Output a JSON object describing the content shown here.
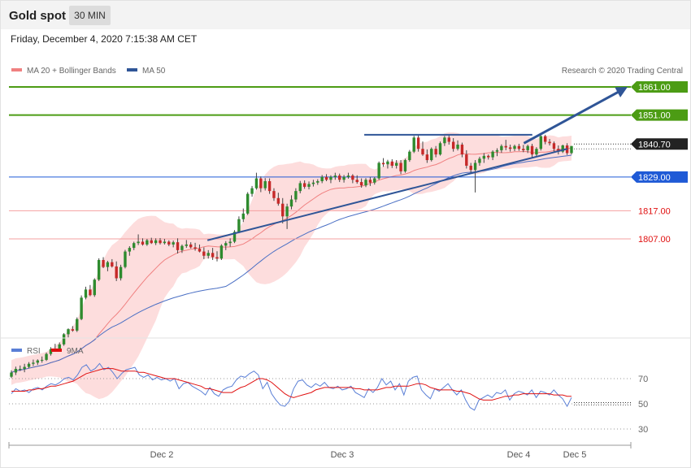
{
  "header": {
    "instrument": "Gold spot",
    "timeframe": "30 MIN",
    "datetime": "Friday, December 4, 2020 7:15:38 AM CET"
  },
  "chart_data": [
    {
      "type": "candlestick",
      "legend": [
        {
          "label": "MA 20 + Bollinger Bands",
          "color": "#f08080"
        },
        {
          "label": "MA 50",
          "color": "#2f5597"
        }
      ],
      "credit": "Research © 2020 Trading Central",
      "x_ticks": [
        "Dec 2",
        "Dec 3",
        "Dec 4",
        "Dec 5"
      ],
      "levels": [
        {
          "label": "1861.00",
          "value": 1861.0,
          "kind": "target",
          "color": "#4c9c14"
        },
        {
          "label": "1851.00",
          "value": 1851.0,
          "kind": "target",
          "color": "#4c9c14"
        },
        {
          "label": "1840.70",
          "value": 1840.7,
          "kind": "last",
          "color": "#222222"
        },
        {
          "label": "1829.00",
          "value": 1829.0,
          "kind": "pivot",
          "color": "#1f5ad6"
        },
        {
          "label": "1817.00",
          "value": 1817.0,
          "kind": "support",
          "color": "#e06060"
        },
        {
          "label": "1807.00",
          "value": 1807.0,
          "kind": "support",
          "color": "#e06060"
        }
      ],
      "ylim": [
        1747,
        1870
      ],
      "annotations": {
        "trendline": [
          {
            "i": 0.35,
            "v": 1806.5
          },
          {
            "i": 1.0,
            "v": 1839.0
          }
        ],
        "resistance": {
          "from": 0.63,
          "to": 0.93,
          "value": 1844.0
        },
        "arrow": {
          "from_i": 0.915,
          "from_v": 1841.0,
          "to_i": 1.0,
          "to_v": 1861.0
        }
      },
      "candles": [
        [
          1758.0,
          1760.3,
          1757.5,
          1759.5
        ],
        [
          1759.5,
          1761.6,
          1758.6,
          1760.8
        ],
        [
          1760.8,
          1762.0,
          1760.0,
          1760.8
        ],
        [
          1760.8,
          1762.6,
          1759.6,
          1761.5
        ],
        [
          1761.5,
          1763.2,
          1761.0,
          1762.6
        ],
        [
          1762.6,
          1764.1,
          1761.8,
          1763.0
        ],
        [
          1763.0,
          1764.2,
          1762.2,
          1763.8
        ],
        [
          1763.8,
          1765.2,
          1763.0,
          1764.0
        ],
        [
          1764.0,
          1766.6,
          1763.6,
          1766.1
        ],
        [
          1766.1,
          1768.5,
          1765.5,
          1767.8
        ],
        [
          1767.8,
          1769.7,
          1767.0,
          1768.0
        ],
        [
          1768.0,
          1770.2,
          1767.6,
          1769.5
        ],
        [
          1769.5,
          1773.5,
          1769.0,
          1773.1
        ],
        [
          1773.1,
          1775.2,
          1772.0,
          1774.9
        ],
        [
          1774.9,
          1776.0,
          1774.0,
          1774.4
        ],
        [
          1774.4,
          1779.1,
          1773.9,
          1778.5
        ],
        [
          1778.5,
          1786.9,
          1778.1,
          1786.1
        ],
        [
          1786.1,
          1790.0,
          1785.5,
          1789.0
        ],
        [
          1789.0,
          1790.6,
          1786.6,
          1787.0
        ],
        [
          1787.0,
          1793.0,
          1786.4,
          1792.5
        ],
        [
          1792.5,
          1800.1,
          1792.0,
          1799.5
        ],
        [
          1799.5,
          1800.5,
          1796.6,
          1797.0
        ],
        [
          1797.0,
          1799.2,
          1795.5,
          1798.7
        ],
        [
          1798.7,
          1799.8,
          1796.8,
          1797.2
        ],
        [
          1797.2,
          1799.0,
          1792.0,
          1793.0
        ],
        [
          1793.0,
          1797.8,
          1792.2,
          1797.0
        ],
        [
          1797.0,
          1803.1,
          1796.5,
          1802.5
        ],
        [
          1802.5,
          1804.4,
          1801.0,
          1803.8
        ],
        [
          1803.8,
          1806.0,
          1803.0,
          1805.5
        ],
        [
          1805.5,
          1808.6,
          1804.8,
          1806.0
        ],
        [
          1806.0,
          1807.2,
          1804.6,
          1805.0
        ],
        [
          1805.0,
          1807.0,
          1804.5,
          1806.5
        ],
        [
          1806.5,
          1807.4,
          1805.2,
          1805.5
        ],
        [
          1805.5,
          1807.2,
          1804.8,
          1806.5
        ],
        [
          1806.5,
          1807.3,
          1805.0,
          1805.5
        ],
        [
          1805.5,
          1807.0,
          1805.0,
          1806.0
        ],
        [
          1806.0,
          1806.5,
          1804.4,
          1805.0
        ],
        [
          1805.0,
          1806.4,
          1804.0,
          1805.8
        ],
        [
          1805.8,
          1807.2,
          1801.8,
          1803.0
        ],
        [
          1803.0,
          1805.0,
          1802.0,
          1804.5
        ],
        [
          1804.5,
          1806.6,
          1803.8,
          1805.0
        ],
        [
          1805.0,
          1805.8,
          1803.6,
          1804.0
        ],
        [
          1804.0,
          1805.6,
          1802.8,
          1803.5
        ],
        [
          1803.5,
          1805.0,
          1802.2,
          1802.5
        ],
        [
          1802.5,
          1804.0,
          1799.8,
          1801.0
        ],
        [
          1801.0,
          1803.0,
          1800.0,
          1802.0
        ],
        [
          1802.0,
          1803.8,
          1799.5,
          1800.5
        ],
        [
          1800.5,
          1802.6,
          1799.0,
          1800.0
        ],
        [
          1800.0,
          1805.1,
          1799.5,
          1804.6
        ],
        [
          1804.6,
          1806.2,
          1803.0,
          1805.5
        ],
        [
          1805.5,
          1807.2,
          1804.2,
          1806.0
        ],
        [
          1806.0,
          1810.1,
          1805.5,
          1809.5
        ],
        [
          1809.5,
          1815.0,
          1809.0,
          1814.0
        ],
        [
          1814.0,
          1817.8,
          1813.0,
          1816.0
        ],
        [
          1816.0,
          1823.6,
          1815.5,
          1823.0
        ],
        [
          1823.0,
          1825.8,
          1822.0,
          1825.0
        ],
        [
          1825.0,
          1830.5,
          1824.5,
          1828.5
        ],
        [
          1828.5,
          1829.2,
          1823.6,
          1825.0
        ],
        [
          1825.0,
          1828.6,
          1824.2,
          1827.5
        ],
        [
          1827.5,
          1828.5,
          1823.0,
          1824.0
        ],
        [
          1824.0,
          1825.0,
          1820.5,
          1821.5
        ],
        [
          1821.5,
          1823.4,
          1818.8,
          1819.5
        ],
        [
          1819.5,
          1821.5,
          1812.5,
          1815.0
        ],
        [
          1815.0,
          1819.5,
          1810.5,
          1818.5
        ],
        [
          1818.5,
          1822.5,
          1817.5,
          1821.0
        ],
        [
          1821.0,
          1825.0,
          1820.0,
          1824.0
        ],
        [
          1824.0,
          1827.6,
          1823.2,
          1826.8
        ],
        [
          1826.8,
          1827.8,
          1824.8,
          1825.5
        ],
        [
          1825.5,
          1827.4,
          1824.6,
          1826.5
        ],
        [
          1826.5,
          1828.0,
          1825.6,
          1827.0
        ],
        [
          1827.0,
          1828.2,
          1826.2,
          1827.5
        ],
        [
          1827.5,
          1829.7,
          1826.8,
          1829.0
        ],
        [
          1829.0,
          1830.0,
          1827.5,
          1828.0
        ],
        [
          1828.0,
          1829.6,
          1826.8,
          1829.0
        ],
        [
          1829.0,
          1830.5,
          1828.0,
          1829.5
        ],
        [
          1829.5,
          1830.2,
          1827.2,
          1828.0
        ],
        [
          1828.0,
          1829.7,
          1827.0,
          1829.0
        ],
        [
          1829.0,
          1830.5,
          1828.4,
          1829.5
        ],
        [
          1829.5,
          1830.0,
          1826.8,
          1828.0
        ],
        [
          1828.0,
          1829.6,
          1826.6,
          1827.2
        ],
        [
          1827.2,
          1828.5,
          1825.2,
          1826.0
        ],
        [
          1826.0,
          1828.6,
          1825.4,
          1828.0
        ],
        [
          1828.0,
          1829.0,
          1825.8,
          1827.0
        ],
        [
          1827.0,
          1829.0,
          1826.3,
          1828.5
        ],
        [
          1828.5,
          1834.5,
          1828.0,
          1834.0
        ],
        [
          1834.0,
          1835.7,
          1832.6,
          1833.5
        ],
        [
          1833.5,
          1835.1,
          1832.0,
          1834.5
        ],
        [
          1834.5,
          1835.3,
          1832.2,
          1833.0
        ],
        [
          1833.0,
          1835.0,
          1832.0,
          1834.0
        ],
        [
          1834.0,
          1835.0,
          1830.0,
          1831.0
        ],
        [
          1831.0,
          1835.5,
          1830.5,
          1835.0
        ],
        [
          1835.0,
          1838.6,
          1834.4,
          1838.0
        ],
        [
          1838.0,
          1843.6,
          1837.5,
          1843.0
        ],
        [
          1843.0,
          1843.8,
          1838.0,
          1839.0
        ],
        [
          1839.0,
          1841.6,
          1836.5,
          1837.0
        ],
        [
          1837.0,
          1838.8,
          1834.0,
          1835.0
        ],
        [
          1835.0,
          1839.5,
          1834.5,
          1839.0
        ],
        [
          1839.0,
          1840.0,
          1836.0,
          1837.0
        ],
        [
          1837.0,
          1841.6,
          1836.6,
          1841.0
        ],
        [
          1841.0,
          1843.6,
          1840.0,
          1843.0
        ],
        [
          1843.0,
          1843.8,
          1840.5,
          1841.5
        ],
        [
          1841.5,
          1842.8,
          1838.0,
          1839.0
        ],
        [
          1839.0,
          1842.0,
          1838.4,
          1840.5
        ],
        [
          1840.5,
          1841.2,
          1836.0,
          1837.0
        ],
        [
          1837.0,
          1838.5,
          1832.0,
          1833.0
        ],
        [
          1833.0,
          1834.0,
          1830.5,
          1831.5
        ],
        [
          1831.5,
          1835.0,
          1823.5,
          1834.0
        ],
        [
          1834.0,
          1836.2,
          1833.0,
          1835.5
        ],
        [
          1835.5,
          1837.5,
          1834.0,
          1836.5
        ],
        [
          1836.5,
          1837.0,
          1835.2,
          1836.0
        ],
        [
          1836.0,
          1838.5,
          1835.0,
          1838.0
        ],
        [
          1838.0,
          1839.2,
          1836.4,
          1838.5
        ],
        [
          1838.5,
          1840.6,
          1837.6,
          1840.0
        ],
        [
          1840.0,
          1842.2,
          1838.5,
          1839.5
        ],
        [
          1839.5,
          1840.5,
          1838.0,
          1839.0
        ],
        [
          1839.0,
          1840.5,
          1838.2,
          1840.0
        ],
        [
          1840.0,
          1840.8,
          1838.3,
          1839.0
        ],
        [
          1839.0,
          1840.4,
          1837.8,
          1838.5
        ],
        [
          1838.5,
          1840.5,
          1837.5,
          1840.0
        ],
        [
          1840.0,
          1840.8,
          1836.0,
          1837.0
        ],
        [
          1837.0,
          1839.6,
          1836.4,
          1839.0
        ],
        [
          1839.0,
          1843.9,
          1838.4,
          1843.5
        ],
        [
          1843.5,
          1844.0,
          1840.6,
          1841.5
        ],
        [
          1841.5,
          1842.5,
          1840.2,
          1841.0
        ],
        [
          1841.0,
          1841.6,
          1838.0,
          1839.0
        ],
        [
          1839.0,
          1840.2,
          1837.0,
          1838.0
        ],
        [
          1838.0,
          1840.5,
          1837.5,
          1840.2
        ],
        [
          1840.2,
          1841.0,
          1836.8,
          1837.5
        ],
        [
          1837.5,
          1840.0,
          1837.0,
          1840.0
        ]
      ]
    },
    {
      "type": "line",
      "legend": [
        {
          "label": "RSI",
          "color": "#5a7fd6"
        },
        {
          "label": "9MA",
          "color": "#e01010"
        }
      ],
      "y_ticks": [
        70,
        50,
        30
      ],
      "ylim": [
        20,
        87
      ],
      "series": [
        {
          "name": "RSI",
          "color": "#5a7fd6",
          "values": [
            58,
            62,
            60,
            61,
            59,
            62,
            63,
            61,
            64,
            66,
            65,
            67,
            70,
            71,
            69,
            73,
            79,
            81,
            76,
            78,
            82,
            77,
            79,
            75,
            70,
            74,
            77,
            78,
            79,
            73,
            71,
            73,
            69,
            71,
            69,
            70,
            68,
            70,
            62,
            66,
            67,
            64,
            62,
            60,
            57,
            63,
            58,
            56,
            61,
            63,
            64,
            69,
            72,
            71,
            74,
            76,
            73,
            62,
            67,
            58,
            53,
            49,
            48,
            52,
            62,
            68,
            69,
            65,
            63,
            66,
            64,
            67,
            63,
            62,
            64,
            61,
            62,
            64,
            59,
            57,
            55,
            62,
            59,
            63,
            70,
            65,
            68,
            61,
            66,
            57,
            68,
            71,
            72,
            61,
            57,
            54,
            62,
            60,
            63,
            66,
            61,
            57,
            61,
            53,
            47,
            45,
            53,
            55,
            57,
            55,
            59,
            58,
            61,
            53,
            58,
            60,
            59,
            57,
            61,
            55,
            60,
            59,
            57,
            61,
            57,
            54,
            48,
            55
          ]
        },
        {
          "name": "9MA",
          "color": "#e01010",
          "values": [
            60,
            60,
            60,
            60,
            61,
            61,
            62,
            62,
            63,
            64,
            64,
            65,
            66,
            67,
            68,
            70,
            72,
            74,
            75,
            76,
            77,
            78,
            78,
            78,
            77,
            76,
            76,
            76,
            76,
            75,
            75,
            74,
            73,
            72,
            71,
            70,
            70,
            70,
            69,
            68,
            67,
            66,
            65,
            64,
            62,
            62,
            61,
            60,
            59,
            59,
            59,
            61,
            63,
            64,
            66,
            68,
            70,
            70,
            69,
            67,
            64,
            61,
            58,
            56,
            55,
            56,
            57,
            58,
            59,
            61,
            62,
            63,
            63,
            63,
            63,
            63,
            63,
            63,
            62,
            62,
            61,
            61,
            61,
            61,
            62,
            63,
            63,
            64,
            64,
            64,
            64,
            65,
            66,
            66,
            65,
            63,
            62,
            61,
            61,
            61,
            61,
            60,
            60,
            59,
            58,
            56,
            54,
            53,
            53,
            53,
            54,
            55,
            56,
            56,
            57,
            57,
            58,
            58,
            58,
            58,
            58,
            58,
            58,
            57,
            57,
            57,
            56,
            56
          ]
        }
      ]
    }
  ]
}
